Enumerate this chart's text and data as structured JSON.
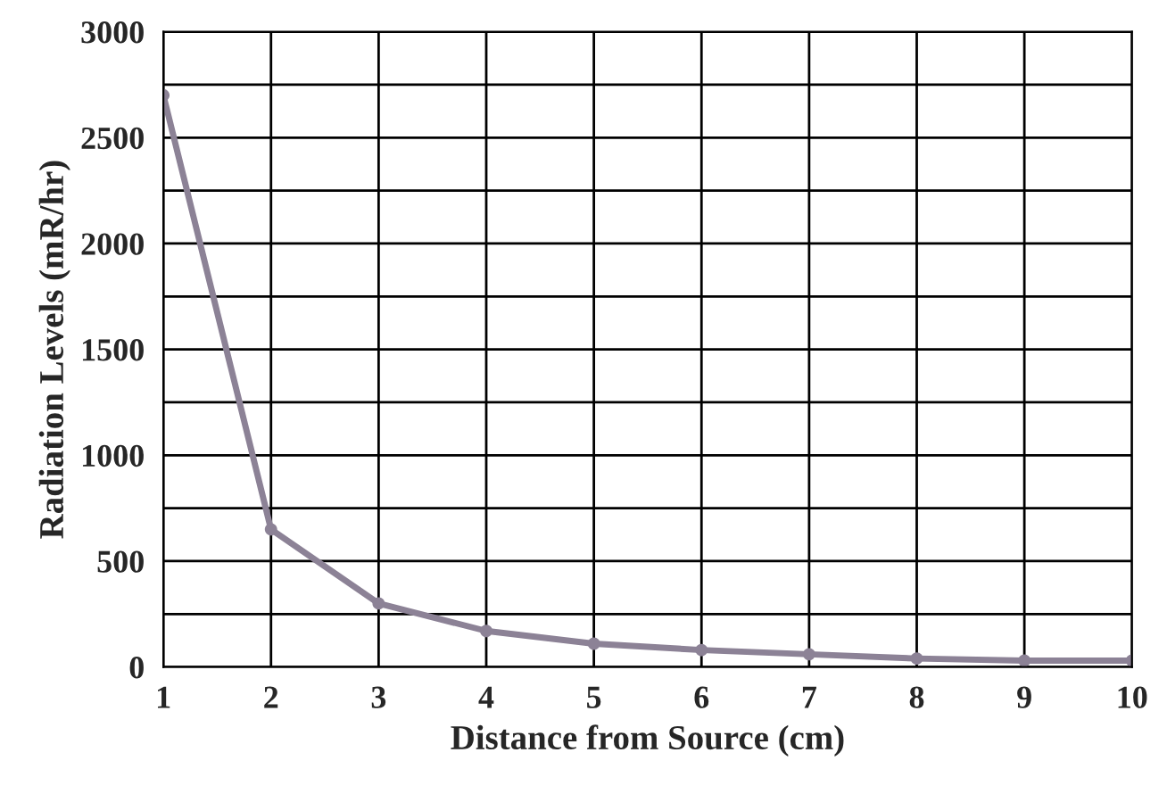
{
  "chart_data": {
    "type": "line",
    "xlabel": "Distance from Source (cm)",
    "ylabel": "Radiation Levels (mR/hr)",
    "x": [
      1,
      2,
      3,
      4,
      5,
      6,
      7,
      8,
      9,
      10
    ],
    "series": [
      {
        "color": "#8c8296",
        "values": [
          2700,
          650,
          300,
          170,
          110,
          80,
          60,
          40,
          30,
          30
        ]
      }
    ],
    "xlim": [
      1,
      10
    ],
    "xticks": [
      1,
      2,
      3,
      4,
      5,
      6,
      7,
      8,
      9,
      10
    ],
    "ylim": [
      0,
      3000
    ],
    "yticks": [
      0,
      {
        "value": 250,
        "label": null
      },
      500,
      {
        "value": 750,
        "label": null
      },
      1000,
      {
        "value": 1250,
        "label": null
      },
      1500,
      {
        "value": 1750,
        "label": null
      },
      2000,
      {
        "value": 2250,
        "label": null
      },
      2500,
      {
        "value": 2750,
        "label": null
      },
      3000
    ],
    "grid": true,
    "marker": "circle",
    "line_style": "solid"
  }
}
